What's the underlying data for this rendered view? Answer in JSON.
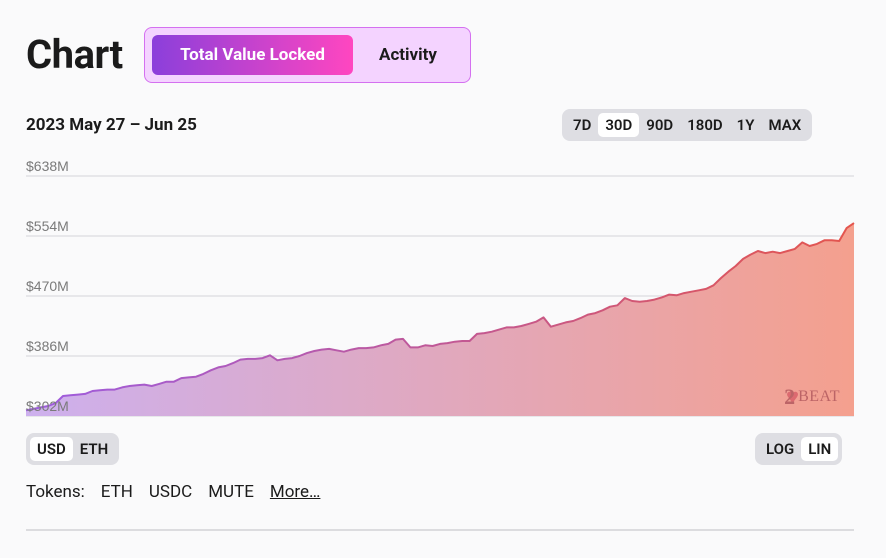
{
  "header": {
    "title": "Chart",
    "tabs": [
      {
        "label": "Total Value Locked",
        "active": true
      },
      {
        "label": "Activity",
        "active": false
      }
    ]
  },
  "range_label": "2023 May 27 – Jun 25",
  "timeframes": [
    {
      "label": "7D",
      "active": false
    },
    {
      "label": "30D",
      "active": true
    },
    {
      "label": "90D",
      "active": false
    },
    {
      "label": "180D",
      "active": false
    },
    {
      "label": "1Y",
      "active": false
    },
    {
      "label": "MAX",
      "active": false
    }
  ],
  "currency": [
    {
      "label": "USD",
      "active": true
    },
    {
      "label": "ETH",
      "active": false
    }
  ],
  "scale": [
    {
      "label": "LOG",
      "active": false
    },
    {
      "label": "LIN",
      "active": true
    }
  ],
  "tokens": {
    "label": "Tokens:",
    "items": [
      "ETH",
      "USDC",
      "MUTE"
    ],
    "more": "More…"
  },
  "watermark": {
    "num": "2",
    "text": "BEAT"
  },
  "colors": {
    "gradient_start": "#9d5ce0",
    "gradient_end": "#e4554d",
    "area_start": "#cdb0ee",
    "area_end": "#f4a08e"
  },
  "chart_data": {
    "type": "area",
    "title": "",
    "xlabel": "",
    "ylabel": "",
    "ylim": [
      302,
      638
    ],
    "yticks": [
      "$638M",
      "$554M",
      "$470M",
      "$386M",
      "$302M"
    ],
    "ytick_values": [
      638,
      554,
      470,
      386,
      302
    ],
    "grid": true,
    "series": [
      {
        "values": [
          310,
          312,
          314,
          316,
          320,
          330,
          331,
          332,
          333,
          337,
          338,
          339,
          339,
          342,
          344,
          345,
          346,
          344,
          347,
          350,
          350,
          355,
          356,
          357,
          361,
          366,
          370,
          372,
          376,
          381,
          382,
          382,
          383,
          387,
          380,
          382,
          383,
          386,
          390,
          393,
          395,
          396,
          394,
          392,
          395,
          397,
          397,
          398,
          401,
          403,
          409,
          410,
          398,
          398,
          401,
          400,
          403,
          404,
          406,
          407,
          407,
          417,
          418,
          420,
          423,
          426,
          426,
          428,
          431,
          434,
          440,
          427,
          430,
          433,
          435,
          439,
          444,
          446,
          450,
          455,
          457,
          467,
          463,
          462,
          463,
          465,
          468,
          472,
          471,
          474,
          476,
          478,
          480,
          485,
          495,
          504,
          512,
          522,
          528,
          533,
          530,
          532,
          530,
          533,
          536,
          545,
          540,
          543,
          548,
          548,
          547,
          565,
          572
        ]
      }
    ]
  }
}
